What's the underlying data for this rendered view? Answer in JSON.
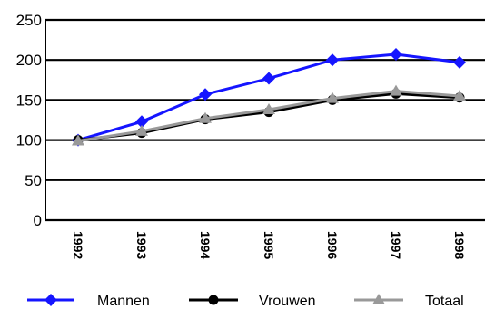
{
  "chart_data": {
    "type": "line",
    "categories": [
      "1992",
      "1993",
      "1994",
      "1995",
      "1996",
      "1997",
      "1998"
    ],
    "series": [
      {
        "name": "Mannen",
        "values": [
          100,
          123,
          157,
          177,
          200,
          207,
          197
        ],
        "color": "#1515ff",
        "marker": "diamond"
      },
      {
        "name": "Vrouwen",
        "values": [
          100,
          109,
          126,
          135,
          150,
          158,
          153
        ],
        "color": "#000000",
        "marker": "circle"
      },
      {
        "name": "Totaal",
        "values": [
          99,
          111,
          127,
          138,
          152,
          161,
          155
        ],
        "color": "#999999",
        "marker": "triangle"
      }
    ],
    "yticks": [
      "0",
      "50",
      "100",
      "150",
      "200",
      "250"
    ],
    "ylim": [
      0,
      250
    ],
    "grid": "horizontal",
    "legend_position": "bottom"
  }
}
